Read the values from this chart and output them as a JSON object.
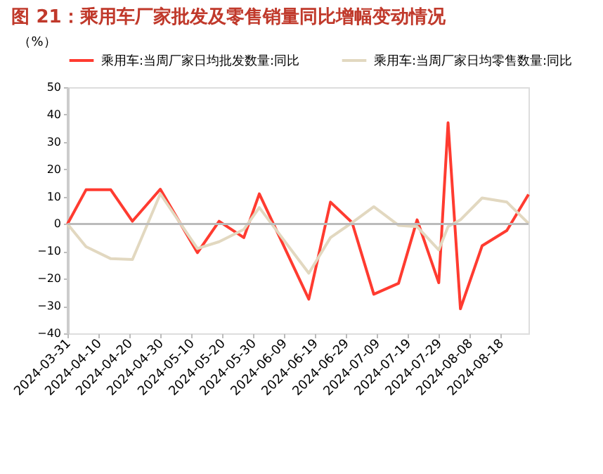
{
  "chart_data": {
    "type": "line",
    "title": "图 21：乘用车厂家批发及零售销量同比增幅变动情况",
    "ylabel": "（%）",
    "xlim": [
      "2024-03-31",
      "2024-08-27"
    ],
    "xticks": [
      "2024-03-31",
      "2024-04-10",
      "2024-04-20",
      "2024-04-30",
      "2024-05-10",
      "2024-05-20",
      "2024-05-30",
      "2024-06-09",
      "2024-06-19",
      "2024-06-29",
      "2024-07-09",
      "2024-07-19",
      "2024-07-29",
      "2024-08-08",
      "2024-08-18"
    ],
    "ylim": [
      -40,
      50
    ],
    "yticks": [
      -40,
      -30,
      -20,
      -10,
      0,
      10,
      20,
      30,
      40,
      50
    ],
    "x": [
      "2024-03-31",
      "2024-04-06",
      "2024-04-14",
      "2024-04-21",
      "2024-04-30",
      "2024-05-12",
      "2024-05-19",
      "2024-05-27",
      "2024-06-01",
      "2024-06-17",
      "2024-06-24",
      "2024-07-01",
      "2024-07-08",
      "2024-07-16",
      "2024-07-22",
      "2024-07-29",
      "2024-08-01",
      "2024-08-05",
      "2024-08-12",
      "2024-08-20",
      "2024-08-27"
    ],
    "series": [
      {
        "name": "乘用车:当周厂家日均批发数量:同比",
        "color": "#ff3b30",
        "values": [
          0,
          12.5,
          12.5,
          1,
          12.7,
          -10.5,
          1,
          -5,
          11,
          -27.5,
          8,
          0.5,
          -25.7,
          -21.7,
          1.5,
          -21.5,
          37,
          -31,
          -8,
          -2.4,
          10.8
        ]
      },
      {
        "name": "乘用车:当周厂家日均零售数量:同比",
        "color": "#e2d8c0",
        "values": [
          0,
          -8.3,
          -12.7,
          -13,
          11,
          -9,
          -6.5,
          -2,
          6,
          -18,
          -5,
          0.5,
          6.3,
          -0.5,
          -1,
          -9.5,
          -1,
          1.5,
          9.5,
          8,
          0.2
        ]
      }
    ],
    "ref_lines": [
      {
        "axis": "y",
        "value": 0,
        "color": "#bbbbbb"
      }
    ],
    "legend": "top",
    "grid": false
  }
}
